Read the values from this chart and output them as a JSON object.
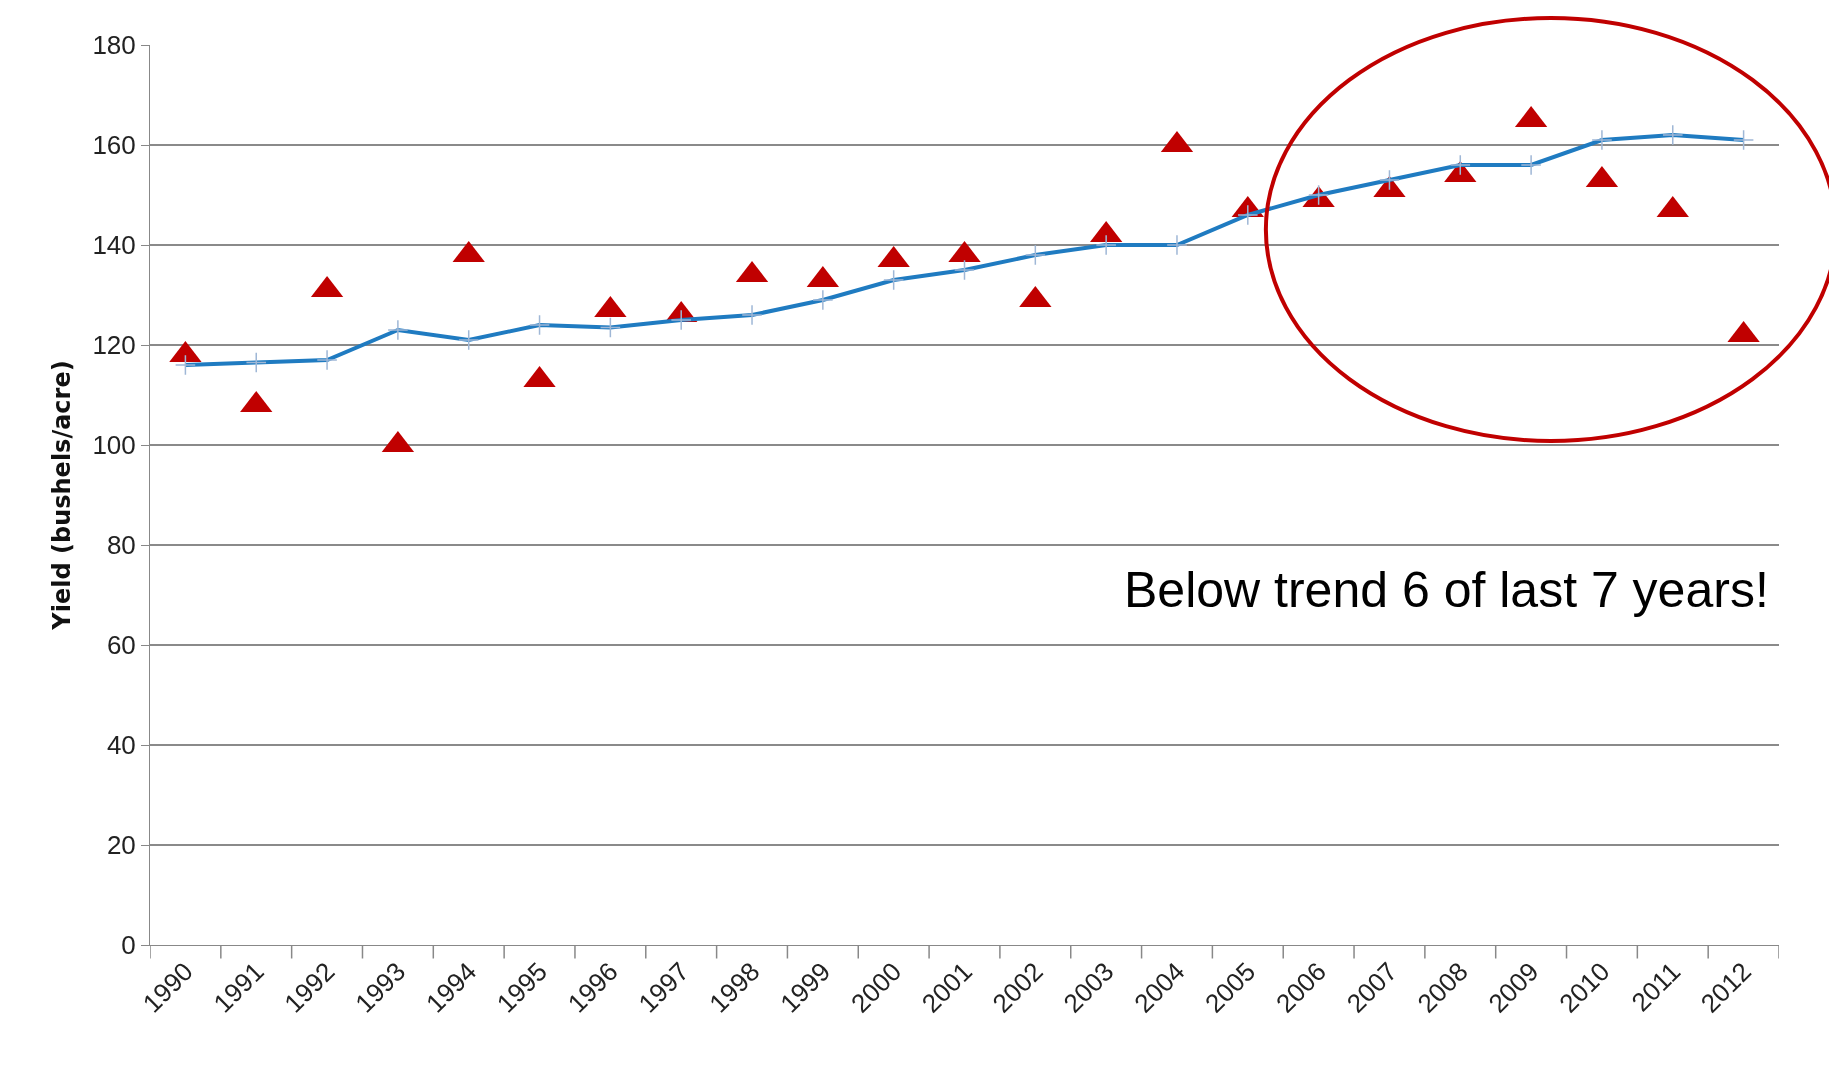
{
  "chart_data": {
    "type": "scatter",
    "ylabel": "Yield (bushels/acre)",
    "categories": [
      "1990",
      "1991",
      "1992",
      "1993",
      "1994",
      "1995",
      "1996",
      "1997",
      "1998",
      "1999",
      "2000",
      "2001",
      "2002",
      "2003",
      "2004",
      "2005",
      "2006",
      "2007",
      "2008",
      "2009",
      "2010",
      "2011",
      "2012"
    ],
    "series": [
      {
        "color": "#c00000",
        "marker": "triangle",
        "values": [
          118,
          108,
          131,
          100,
          138,
          113,
          127,
          126,
          134,
          133,
          137,
          138,
          129,
          142,
          160,
          147,
          149,
          151,
          154,
          165,
          153,
          147,
          122
        ]
      },
      {
        "type": "line",
        "color": "#1f7bc1",
        "marker": "cross",
        "values": [
          116,
          116.5,
          117,
          123,
          121,
          124,
          123.5,
          125,
          126,
          129,
          133,
          135,
          138,
          140,
          140,
          146,
          150,
          153,
          156,
          156,
          161,
          162,
          161
        ]
      }
    ],
    "ylim": [
      0,
      180
    ],
    "yticks": [
      0,
      20,
      40,
      60,
      80,
      100,
      120,
      140,
      160,
      180
    ],
    "grid": "y",
    "legend": false,
    "annotations": [
      "Below trend 6 of last 7 years!"
    ]
  }
}
